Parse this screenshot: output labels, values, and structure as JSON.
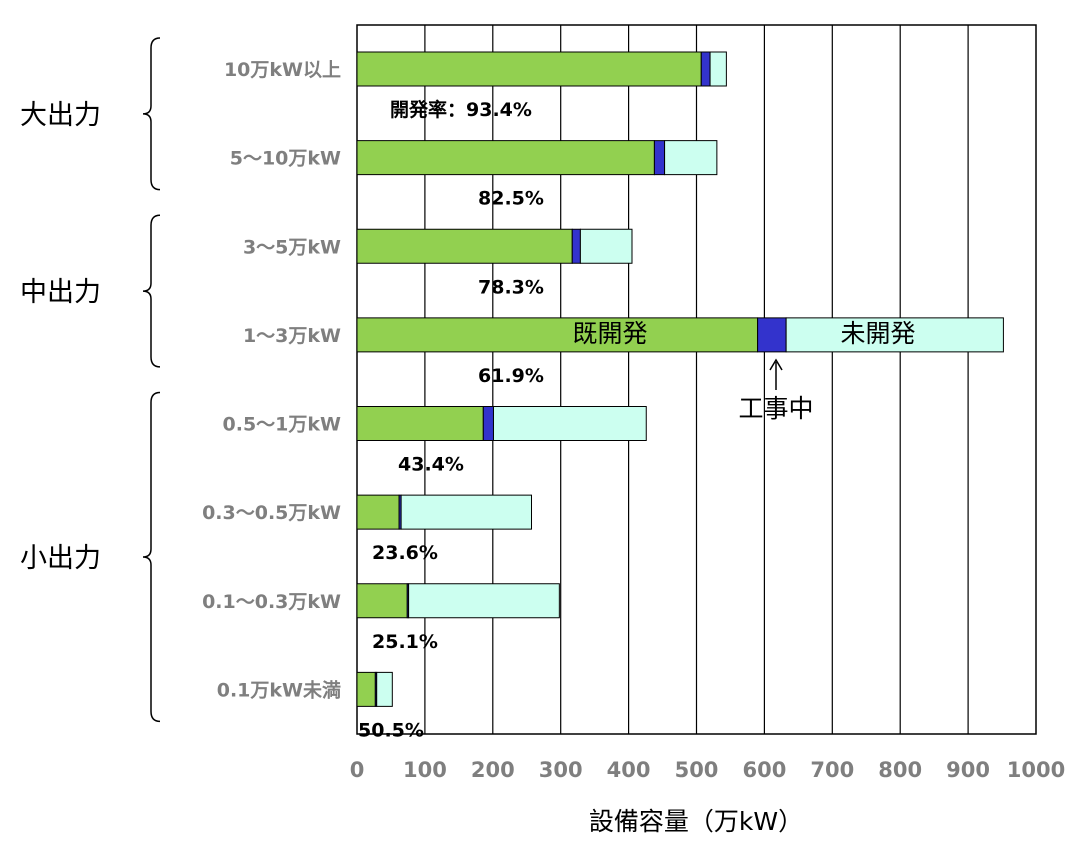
{
  "chart_data": {
    "type": "bar",
    "orientation": "horizontal",
    "stacked": true,
    "xlabel": "設備容量（万kW）",
    "xlim": [
      0,
      1000
    ],
    "xticks": [
      0,
      100,
      200,
      300,
      400,
      500,
      600,
      700,
      800,
      900,
      1000
    ],
    "grid": true,
    "categories": [
      "10万kW以上",
      "5～10万kW",
      "3～5万kW",
      "1～3万kW",
      "0.5～1万kW",
      "0.3～0.5万kW",
      "0.1～0.3万kW",
      "0.1万kW未満"
    ],
    "series": [
      {
        "name": "既開発",
        "color": "#92d050",
        "values": [
          507,
          438,
          317,
          590,
          186,
          62,
          74,
          27
        ]
      },
      {
        "name": "工事中",
        "color": "#3333cc",
        "values": [
          13,
          15,
          12,
          42,
          15,
          3,
          2,
          2
        ]
      },
      {
        "name": "未開発",
        "color": "#ccfff0",
        "values": [
          24,
          77,
          76,
          320,
          225,
          192,
          222,
          23
        ]
      }
    ],
    "rate_labels": [
      "開発率：93.4%",
      "82.5%",
      "78.3%",
      "61.9%",
      "43.4%",
      "23.6%",
      "25.1%",
      "50.5%"
    ],
    "groups": [
      {
        "label": "大出力",
        "categories": [
          0,
          1
        ]
      },
      {
        "label": "中出力",
        "categories": [
          2,
          3
        ]
      },
      {
        "label": "小出力",
        "categories": [
          4,
          5,
          6,
          7
        ]
      }
    ],
    "annotations": {
      "existing": "既開発",
      "undeveloped": "未開発",
      "under_construction": "工事中"
    }
  }
}
